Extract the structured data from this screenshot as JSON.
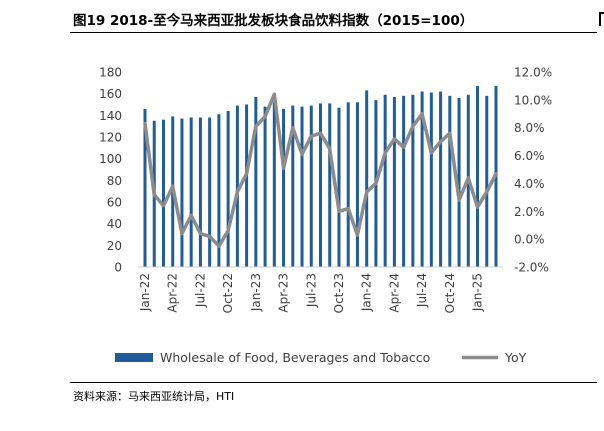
{
  "figure": {
    "title": "图19 2018-至今马来西亚批发板块食品饮料指数（2015=100）",
    "source": "资料来源：马来西亚统计局，HTI"
  },
  "chart_data": {
    "type": "bar+line",
    "title": "",
    "xlabel": "",
    "ylabel": "",
    "left_axis": {
      "ylim": [
        0,
        180
      ],
      "ticks": [
        "0",
        "20",
        "40",
        "60",
        "80",
        "100",
        "120",
        "140",
        "160",
        "180"
      ]
    },
    "right_axis": {
      "ylim": [
        -2.0,
        12.0
      ],
      "unit": "%",
      "ticks": [
        "-2.0%",
        "0.0%",
        "2.0%",
        "4.0%",
        "6.0%",
        "8.0%",
        "10.0%",
        "12.0%"
      ]
    },
    "x_tick_labels": [
      "Jan-22",
      "Apr-22",
      "Jul-22",
      "Oct-22",
      "Jan-23",
      "Apr-23",
      "Jul-23",
      "Oct-23",
      "Jan-24",
      "Apr-24",
      "Jul-24",
      "Oct-24",
      "Jan-25"
    ],
    "categories": [
      "Jan-22",
      "Feb-22",
      "Mar-22",
      "Apr-22",
      "May-22",
      "Jun-22",
      "Jul-22",
      "Aug-22",
      "Sep-22",
      "Oct-22",
      "Nov-22",
      "Dec-22",
      "Jan-23",
      "Feb-23",
      "Mar-23",
      "Apr-23",
      "May-23",
      "Jun-23",
      "Jul-23",
      "Aug-23",
      "Sep-23",
      "Oct-23",
      "Nov-23",
      "Dec-23",
      "Jan-24",
      "Feb-24",
      "Mar-24",
      "Apr-24",
      "May-24",
      "Jun-24",
      "Jul-24",
      "Aug-24",
      "Sep-24",
      "Oct-24",
      "Nov-24",
      "Dec-24",
      "Jan-25",
      "Feb-25",
      "Mar-25"
    ],
    "series": [
      {
        "name": "Wholesale of Food, Beverages and Tobacco",
        "type": "bar",
        "axis": "left",
        "color": "#1f5c99",
        "values": [
          146,
          135,
          136,
          139,
          137,
          138,
          138,
          138,
          141,
          144,
          149,
          150,
          157,
          148,
          152,
          146,
          149,
          148,
          149,
          151,
          151,
          147,
          152,
          152,
          163,
          154,
          159,
          157,
          158,
          159,
          162,
          161,
          162,
          158,
          156,
          159,
          167,
          158,
          167
        ]
      },
      {
        "name": "YoY",
        "type": "line",
        "axis": "right",
        "color": "#8c8c8c",
        "values": [
          8.3,
          3.2,
          2.4,
          3.8,
          0.4,
          1.7,
          0.4,
          0.2,
          -0.5,
          0.6,
          3.4,
          4.7,
          8.1,
          8.8,
          10.4,
          5.1,
          8.0,
          6.1,
          7.4,
          7.6,
          6.5,
          2.0,
          2.2,
          0.3,
          3.4,
          4.0,
          6.2,
          7.2,
          6.6,
          8.1,
          9.0,
          6.2,
          7.0,
          7.6,
          2.8,
          4.4,
          2.3,
          3.4,
          4.7
        ]
      }
    ],
    "legend": {
      "position": "bottom"
    }
  }
}
